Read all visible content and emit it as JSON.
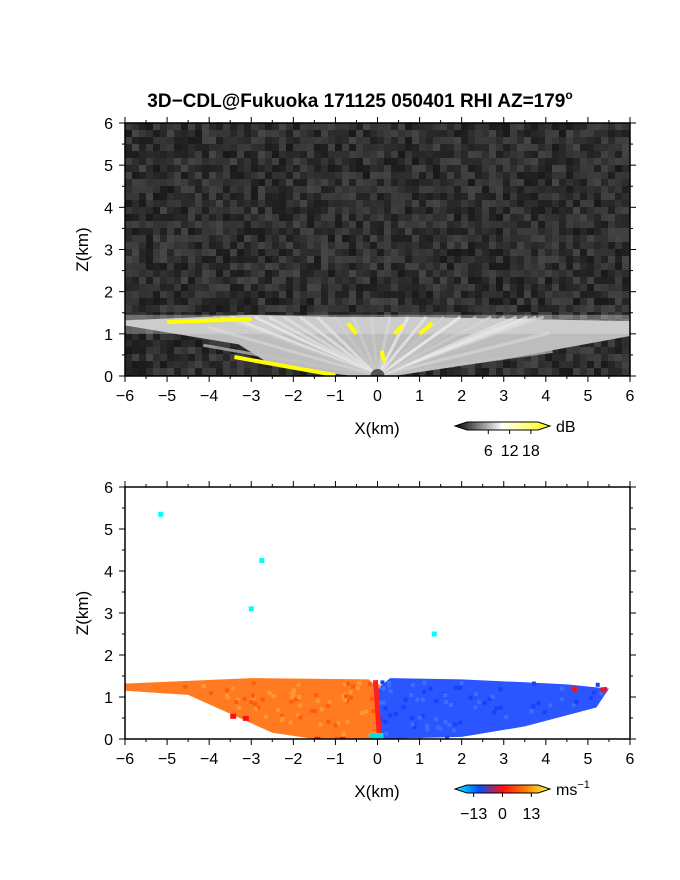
{
  "title": "3D−CDL@Fukuoka 171125 050401 RHI AZ=179",
  "title_sup": "o",
  "chart_data": [
    {
      "type": "heatmap",
      "name": "reflectivity",
      "xlabel": "X(km)",
      "ylabel": "Z(km)",
      "xlim": [
        -6,
        6
      ],
      "ylim": [
        0,
        6
      ],
      "xticks": [
        "−6",
        "−5",
        "−4",
        "−3",
        "−2",
        "−1",
        "0",
        "1",
        "2",
        "3",
        "4",
        "5",
        "6"
      ],
      "yticks": [
        "0",
        "1",
        "2",
        "3",
        "4",
        "5",
        "6"
      ],
      "grid": false,
      "colorbar": {
        "unit": "dB",
        "ticks": [
          "6",
          "12",
          "18"
        ],
        "tick_values": [
          6,
          12,
          18
        ],
        "range": [
          0,
          20
        ],
        "colors": [
          "#000000",
          "#ffffff",
          "#ffff00"
        ]
      },
      "background_color": "#2a2a2a",
      "echo_top_km": 1.4,
      "echo_x_range": [
        -6,
        6
      ]
    },
    {
      "type": "heatmap",
      "name": "doppler-velocity",
      "xlabel": "X(km)",
      "ylabel": "Z(km)",
      "xlim": [
        -6,
        6
      ],
      "ylim": [
        0,
        6
      ],
      "xticks": [
        "−6",
        "−5",
        "−4",
        "−3",
        "−2",
        "−1",
        "0",
        "1",
        "2",
        "3",
        "4",
        "5",
        "6"
      ],
      "yticks": [
        "0",
        "1",
        "2",
        "3",
        "4",
        "5",
        "6"
      ],
      "grid": false,
      "colorbar": {
        "unit": "ms",
        "unit_sup": "−1",
        "ticks": [
          "−13",
          "0",
          "13"
        ],
        "tick_values": [
          -13,
          0,
          13
        ],
        "range": [
          -16,
          16
        ],
        "colors": [
          "#00ffff",
          "#0050ff",
          "#ff1010",
          "#ff8000",
          "#ffff40"
        ]
      },
      "negative_color": "#2a55ff",
      "positive_color": "#ff7a20",
      "echo_top_km": 1.4,
      "echo_x_range": [
        -6,
        5.5
      ],
      "isolated_points": [
        {
          "x": -5.15,
          "z": 5.35
        },
        {
          "x": -2.75,
          "z": 4.25
        },
        {
          "x": -3.0,
          "z": 3.1
        },
        {
          "x": 1.35,
          "z": 2.5
        }
      ]
    }
  ]
}
